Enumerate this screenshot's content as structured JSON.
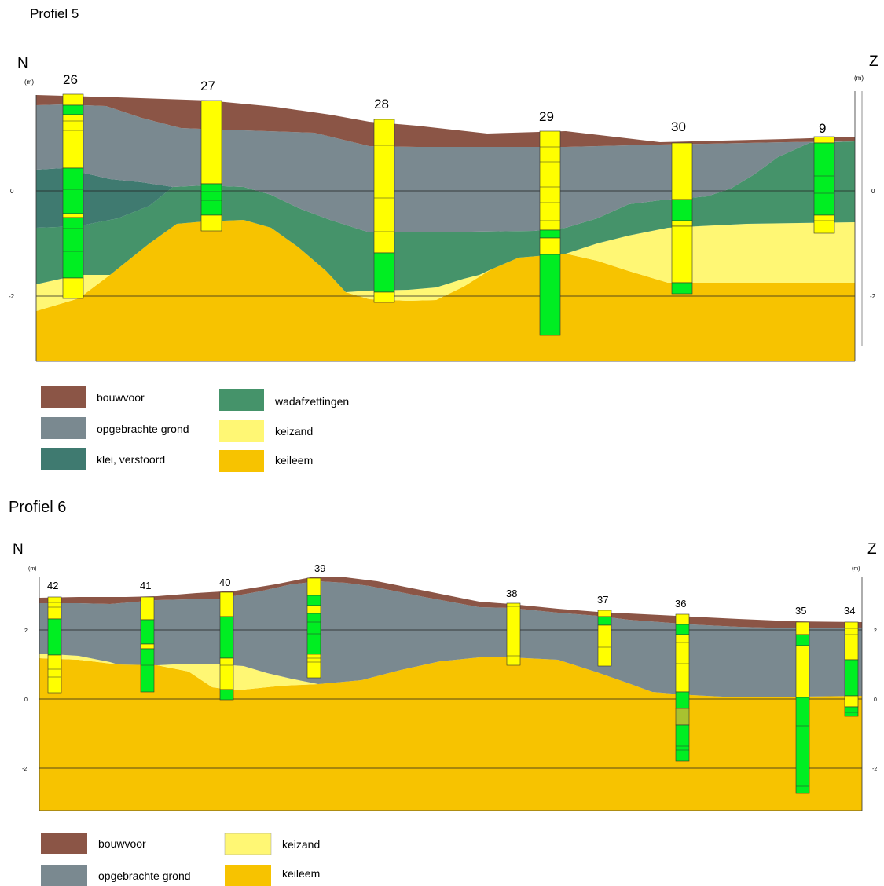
{
  "colors": {
    "bouwvoor": "#8B5546",
    "opgebrachte_grond": "#7A8990",
    "klei_verstoord": "#3F7A70",
    "wadafzettingen": "#45936A",
    "keizand": "#FFF774",
    "keileem": "#F7C300",
    "boring_geel": "#FFFF00",
    "boring_groen": "#00EE22"
  },
  "profiel5": {
    "title": "Profiel 5",
    "north": "N",
    "south": "Z",
    "unit": "(m)",
    "ticks": [
      "0",
      "-2"
    ],
    "boreholes": [
      "26",
      "27",
      "28",
      "29",
      "30",
      "9"
    ],
    "legend": [
      {
        "label": "bouwvoor",
        "color": "#8B5546"
      },
      {
        "label": "opgebrachte grond",
        "color": "#7A8990"
      },
      {
        "label": "klei, verstoord",
        "color": "#3F7A70"
      },
      {
        "label": "wadafzettingen",
        "color": "#45936A"
      },
      {
        "label": "keizand",
        "color": "#FFF774"
      },
      {
        "label": "keileem",
        "color": "#F7C300"
      }
    ]
  },
  "profiel6": {
    "title": "Profiel 6",
    "north": "N",
    "south": "Z",
    "unit": "(m)",
    "ticks": [
      "2",
      "0",
      "-2"
    ],
    "boreholes": [
      "42",
      "41",
      "40",
      "39",
      "38",
      "37",
      "36",
      "35",
      "34"
    ],
    "legend": [
      {
        "label": "bouwvoor",
        "color": "#8B5546"
      },
      {
        "label": "opgebrachte grond",
        "color": "#7A8990"
      },
      {
        "label": "keizand",
        "color": "#FFF774"
      },
      {
        "label": "keileem",
        "color": "#F7C300"
      }
    ]
  }
}
